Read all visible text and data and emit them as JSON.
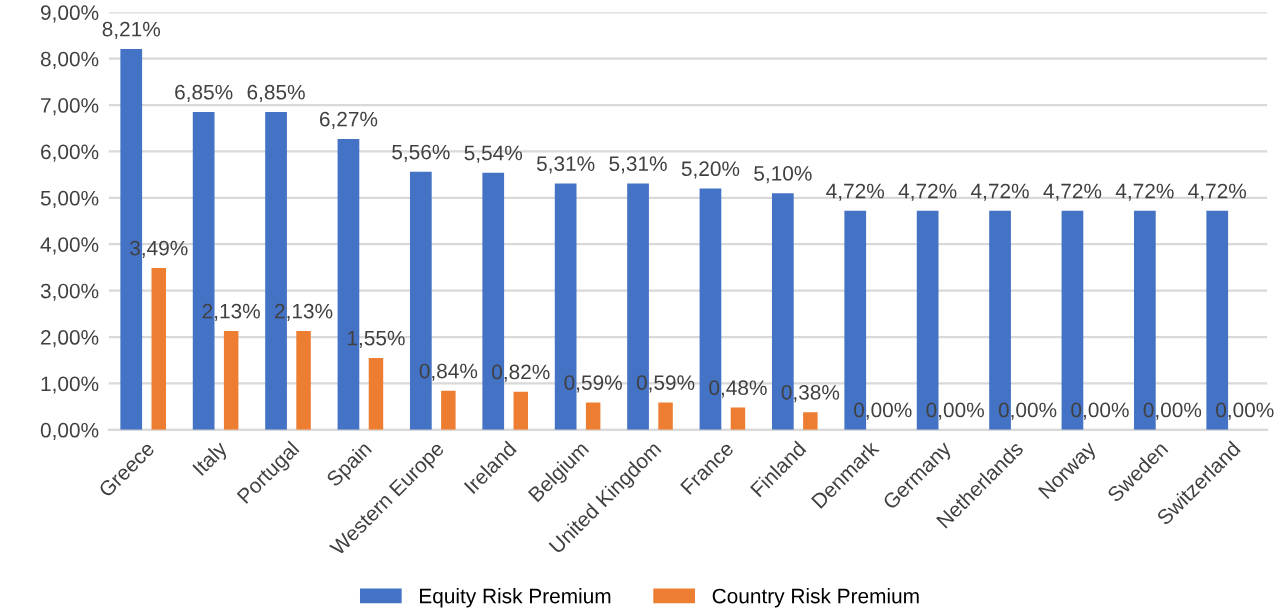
{
  "chart_data": {
    "type": "bar",
    "categories": [
      "Greece",
      "Italy",
      "Portugal",
      "Spain",
      "Western Europe",
      "Ireland",
      "Belgium",
      "United Kingdom",
      "France",
      "Finland",
      "Denmark",
      "Germany",
      "Netherlands",
      "Norway",
      "Sweden",
      "Switzerland"
    ],
    "series": [
      {
        "name": "Equity Risk Premium",
        "color": "#4472c4",
        "values": [
          8.21,
          6.85,
          6.85,
          6.27,
          5.56,
          5.54,
          5.31,
          5.31,
          5.2,
          5.1,
          4.72,
          4.72,
          4.72,
          4.72,
          4.72,
          4.72
        ],
        "value_labels": [
          "8,21%",
          "6,85%",
          "6,85%",
          "6,27%",
          "5,56%",
          "5,54%",
          "5,31%",
          "5,31%",
          "5,20%",
          "5,10%",
          "4,72%",
          "4,72%",
          "4,72%",
          "4,72%",
          "4,72%",
          "4,72%"
        ]
      },
      {
        "name": "Country Risk Premium",
        "color": "#ed7d31",
        "values": [
          3.49,
          2.13,
          2.13,
          1.55,
          0.84,
          0.82,
          0.59,
          0.59,
          0.48,
          0.38,
          0,
          0,
          0,
          0,
          0,
          0
        ],
        "value_labels": [
          "3,49%",
          "2,13%",
          "2,13%",
          "1,55%",
          "0,84%",
          "0,82%",
          "0,59%",
          "0,59%",
          "0,48%",
          "0,38%",
          "0,00%",
          "0,00%",
          "0,00%",
          "0,00%",
          "0,00%",
          "0,00%"
        ]
      }
    ],
    "ylim": [
      0,
      9
    ],
    "yticks": [
      {
        "value": 0,
        "label": "0,00%"
      },
      {
        "value": 1,
        "label": "1,00%"
      },
      {
        "value": 2,
        "label": "2,00%"
      },
      {
        "value": 3,
        "label": "3,00%"
      },
      {
        "value": 4,
        "label": "4,00%"
      },
      {
        "value": 5,
        "label": "5,00%"
      },
      {
        "value": 6,
        "label": "6,00%"
      },
      {
        "value": 7,
        "label": "7,00%"
      },
      {
        "value": 8,
        "label": "8,00%"
      },
      {
        "value": 9,
        "label": "9,00%"
      }
    ],
    "grid": "y",
    "legend": "bottom"
  }
}
